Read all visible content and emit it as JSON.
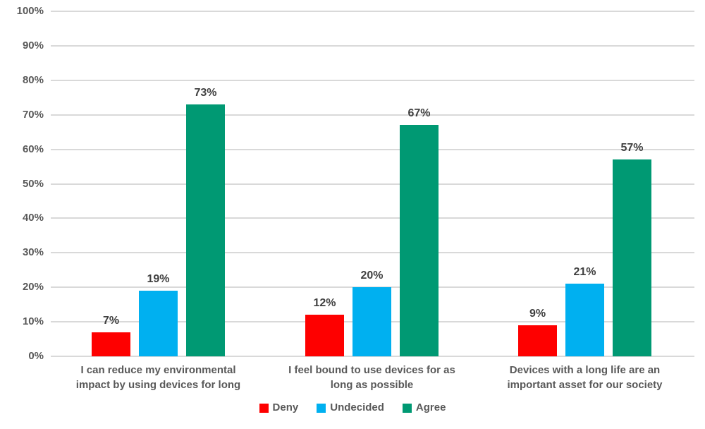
{
  "chart_data": {
    "type": "bar",
    "title": "",
    "xlabel": "",
    "ylabel": "",
    "categories": [
      "I can reduce my environmental impact by using devices for long",
      "I feel bound to use devices for as long as possible",
      "Devices with a long life are an important asset for our society"
    ],
    "category_lines": [
      [
        "I can reduce my environmental",
        "impact by using devices for long"
      ],
      [
        "I feel bound to use devices for as",
        "long as possible"
      ],
      [
        "Devices with a long life are an",
        "important asset for our society"
      ]
    ],
    "series": [
      {
        "name": "Deny",
        "color": "#fe0000",
        "values": [
          7,
          12,
          9
        ]
      },
      {
        "name": "Undecided",
        "color": "#00b0f0",
        "values": [
          19,
          20,
          21
        ]
      },
      {
        "name": "Agree",
        "color": "#009973",
        "values": [
          73,
          67,
          57
        ]
      }
    ],
    "data_labels": [
      [
        "7%",
        "12%",
        "9%"
      ],
      [
        "19%",
        "20%",
        "21%"
      ],
      [
        "73%",
        "67%",
        "57%"
      ]
    ],
    "y_axis": {
      "min": 0,
      "max": 100,
      "step": 10,
      "tick_labels": [
        "0%",
        "10%",
        "20%",
        "30%",
        "40%",
        "50%",
        "60%",
        "70%",
        "80%",
        "90%",
        "100%"
      ]
    },
    "grid": "horizontal",
    "legend_position": "bottom",
    "colors": {
      "background": "#ffffff",
      "gridline": "#d9d9d9",
      "axis_text": "#595959",
      "value_label_text": "#404040"
    }
  }
}
